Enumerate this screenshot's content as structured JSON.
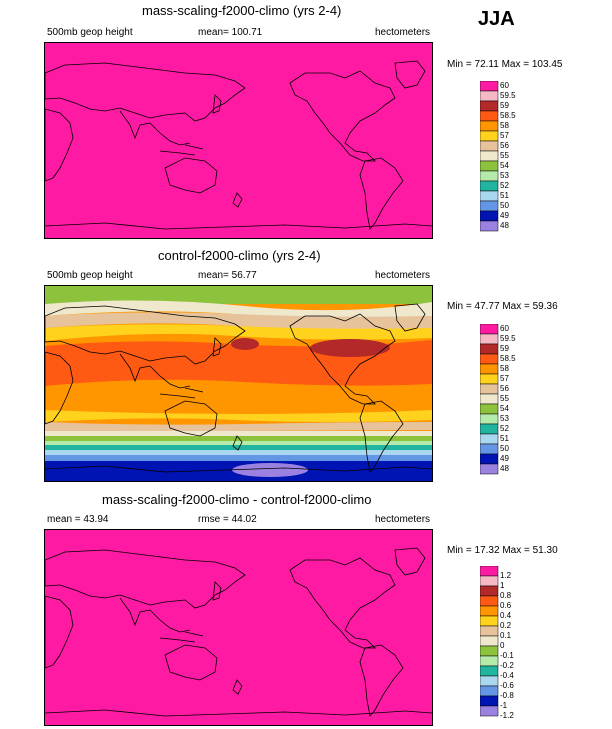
{
  "season": "JJA",
  "colors": {
    "p60": "#ff1aa3",
    "p59_5": "#f5b8c4",
    "p59": "#b32828",
    "p58_5": "#ff5a14",
    "p58": "#ff9600",
    "p57": "#ffd21e",
    "p56": "#e6c39b",
    "p55": "#f0e8cc",
    "p54": "#8cc23c",
    "p53": "#b4ebaa",
    "p52": "#21b4a0",
    "p51": "#aad7f0",
    "p50": "#6496e6",
    "p49": "#0014b4",
    "p48": "#9b82e1"
  },
  "chart_data": [
    {
      "type": "heatmap",
      "title": "mass-scaling-f2000-climo (yrs 2-4)",
      "left_label": "500mb geop height",
      "center_label": "mean= 100.71",
      "right_label": "hectometers",
      "minmax_label": "Min =  72.11 Max = 103.45",
      "min": 72.11,
      "max": 103.45,
      "mean": 100.71,
      "legend_levels": [
        "60",
        "59.5",
        "59",
        "58.5",
        "58",
        "57",
        "56",
        "55",
        "54",
        "53",
        "52",
        "51",
        "50",
        "49",
        "48"
      ]
    },
    {
      "type": "heatmap",
      "title": "control-f2000-climo (yrs 2-4)",
      "left_label": "500mb geop height",
      "center_label": "mean=  56.77",
      "right_label": "hectometers",
      "minmax_label": "Min =  47.77 Max =  59.36",
      "min": 47.77,
      "max": 59.36,
      "mean": 56.77,
      "legend_levels": [
        "60",
        "59.5",
        "59",
        "58.5",
        "58",
        "57",
        "56",
        "55",
        "54",
        "53",
        "52",
        "51",
        "50",
        "49",
        "48"
      ]
    },
    {
      "type": "heatmap",
      "title": "mass-scaling-f2000-climo - control-f2000-climo",
      "left_label": "mean =  43.94",
      "center_label": "rmse =  44.02",
      "right_label": "hectometers",
      "minmax_label": "Min =  17.32 Max =  51.30",
      "min": 17.32,
      "max": 51.3,
      "mean": 43.94,
      "rmse": 44.02,
      "legend_levels": [
        "1.2",
        "1",
        "0.8",
        "0.6",
        "0.4",
        "0.2",
        "0.1",
        "0",
        "-0.1",
        "-0.2",
        "-0.4",
        "-0.6",
        "-0.8",
        "-1",
        "-1.2"
      ]
    }
  ]
}
